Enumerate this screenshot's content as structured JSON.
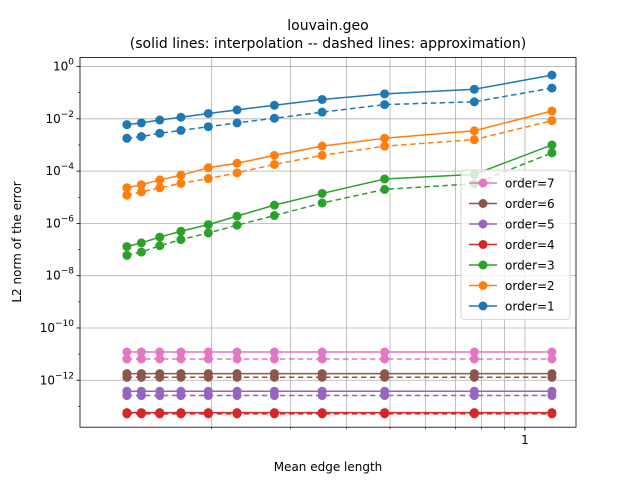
{
  "chart_data": {
    "type": "line",
    "title": "louvain.geo",
    "subtitle": "(solid lines: interpolation -- dashed lines: approximation)",
    "xlabel": "Mean edge length",
    "ylabel": "L2 norm of the error",
    "xscale": "log",
    "yscale": "log",
    "xlim": [
      0.1017,
      1.3
    ],
    "ylim": [
      1.6e-14,
      2.2
    ],
    "grid": true,
    "legend_position": "center right",
    "x_tick_labels": [
      {
        "value": 1,
        "label": "1"
      }
    ],
    "y_tick_labels": [
      {
        "value": 1.0,
        "exp": "0"
      },
      {
        "value": 0.01,
        "exp": "−2"
      },
      {
        "value": 0.0001,
        "exp": "−4"
      },
      {
        "value": 1e-06,
        "exp": "−6"
      },
      {
        "value": 1e-08,
        "exp": "−8"
      },
      {
        "value": 1e-10,
        "exp": "−10"
      },
      {
        "value": 1e-12,
        "exp": "−12"
      }
    ],
    "x": [
      0.1294,
      0.1394,
      0.1532,
      0.1708,
      0.1966,
      0.2279,
      0.2761,
      0.3528,
      0.4864,
      0.7711,
      1.1488
    ],
    "series": [
      {
        "name": "order=7",
        "color": "#e377c2",
        "interpolation": [
          1.2e-11,
          1.2e-11,
          1.2e-11,
          1.2e-11,
          1.2e-11,
          1.2e-11,
          1.2e-11,
          1.2e-11,
          1.2e-11,
          1.2e-11,
          1.2e-11
        ],
        "approximation": [
          6.5e-12,
          6.5e-12,
          6.5e-12,
          6.5e-12,
          6.5e-12,
          6.5e-12,
          6.5e-12,
          6.5e-12,
          6.5e-12,
          6.5e-12,
          6.5e-12
        ]
      },
      {
        "name": "order=6",
        "color": "#8c564b",
        "interpolation": [
          1.8e-12,
          1.8e-12,
          1.8e-12,
          1.8e-12,
          1.8e-12,
          1.8e-12,
          1.8e-12,
          1.8e-12,
          1.8e-12,
          1.8e-12,
          1.8e-12
        ],
        "approximation": [
          1.3e-12,
          1.3e-12,
          1.3e-12,
          1.3e-12,
          1.3e-12,
          1.3e-12,
          1.3e-12,
          1.3e-12,
          1.3e-12,
          1.3e-12,
          1.3e-12
        ]
      },
      {
        "name": "order=5",
        "color": "#9467bd",
        "interpolation": [
          3.8e-13,
          3.8e-13,
          3.8e-13,
          3.8e-13,
          3.8e-13,
          3.8e-13,
          3.8e-13,
          3.8e-13,
          3.8e-13,
          3.8e-13,
          3.8e-13
        ],
        "approximation": [
          2.6e-13,
          2.6e-13,
          2.6e-13,
          2.6e-13,
          2.6e-13,
          2.6e-13,
          2.6e-13,
          2.6e-13,
          2.6e-13,
          2.6e-13,
          2.6e-13
        ]
      },
      {
        "name": "order=4",
        "color": "#d62728",
        "interpolation": [
          5.8e-14,
          5.8e-14,
          5.8e-14,
          5.8e-14,
          5.8e-14,
          5.8e-14,
          5.8e-14,
          5.8e-14,
          5.8e-14,
          5.8e-14,
          5.8e-14
        ],
        "approximation": [
          5.2e-14,
          5.2e-14,
          5.2e-14,
          5.2e-14,
          5.2e-14,
          5.2e-14,
          5.2e-14,
          5.2e-14,
          5.2e-14,
          5.2e-14,
          5.2e-14
        ]
      },
      {
        "name": "order=3",
        "color": "#2ca02c",
        "interpolation": [
          1.3e-07,
          1.8e-07,
          3e-07,
          5e-07,
          9e-07,
          1.9e-06,
          5e-06,
          1.4e-05,
          5e-05,
          7.5e-05,
          0.001
        ],
        "approximation": [
          6e-08,
          8e-08,
          1.4e-07,
          2.4e-07,
          4.3e-07,
          8.5e-07,
          2e-06,
          6e-06,
          2e-05,
          3.3e-05,
          0.0005
        ]
      },
      {
        "name": "order=2",
        "color": "#ff7f0e",
        "interpolation": [
          2.3e-05,
          3e-05,
          4.6e-05,
          7e-05,
          0.000135,
          0.0002,
          0.0004,
          0.0009,
          0.0018,
          0.0035,
          0.02
        ],
        "approximation": [
          1.2e-05,
          1.6e-05,
          2.3e-05,
          3.4e-05,
          5.2e-05,
          8.6e-05,
          0.00018,
          0.0004,
          0.0009,
          0.0016,
          0.0085
        ]
      },
      {
        "name": "order=1",
        "color": "#1f77b4",
        "interpolation": [
          0.006,
          0.007,
          0.009,
          0.0115,
          0.016,
          0.022,
          0.033,
          0.055,
          0.09,
          0.135,
          0.47
        ],
        "approximation": [
          0.0018,
          0.0021,
          0.0028,
          0.0036,
          0.005,
          0.007,
          0.0105,
          0.018,
          0.035,
          0.045,
          0.15
        ]
      }
    ],
    "legend_order": [
      "order=7",
      "order=6",
      "order=5",
      "order=4",
      "order=3",
      "order=2",
      "order=1"
    ]
  }
}
